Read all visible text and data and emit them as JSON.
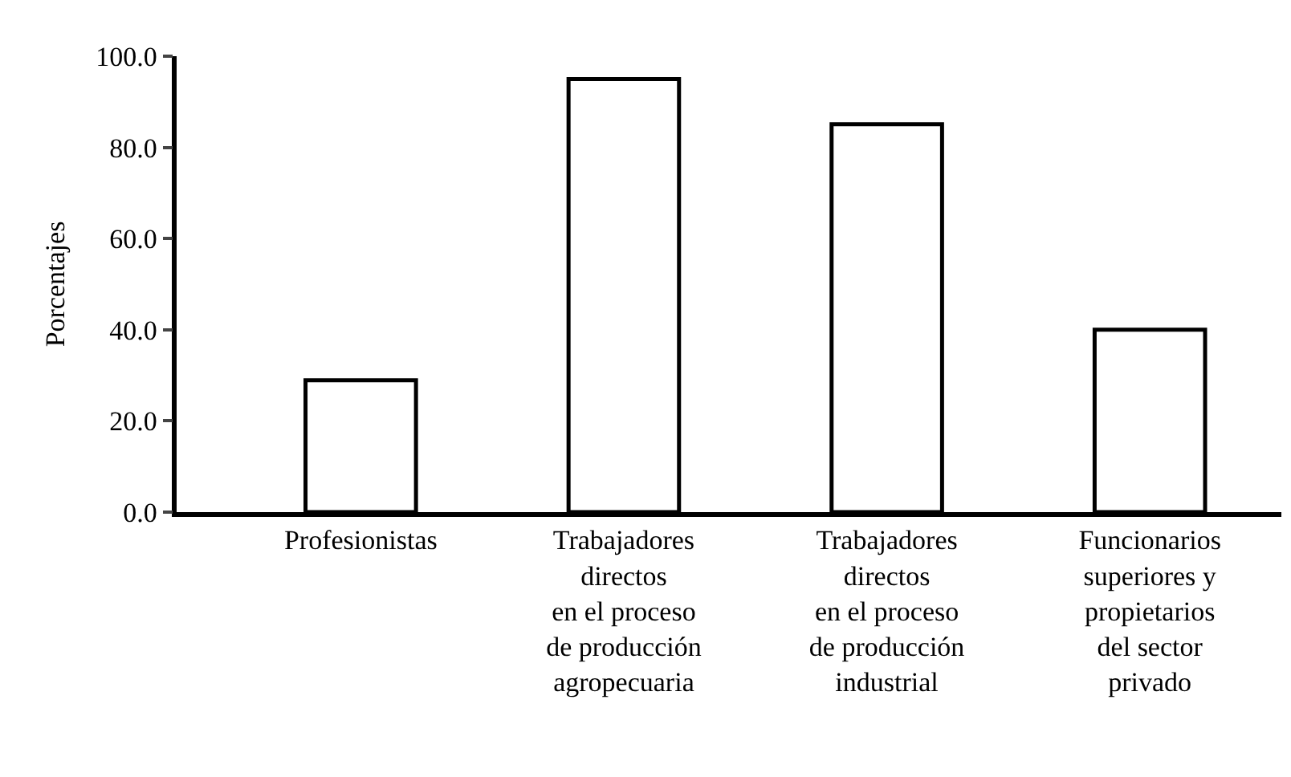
{
  "chart_data": {
    "type": "bar",
    "ylabel": "Porcentajes",
    "categories": [
      "Profesionistas",
      "Trabajadores\ndirectos\nen el proceso\nde producción\nagropecuaria",
      "Trabajadores\ndirectos\nen el proceso\nde producción\nindustrial",
      "Funcionarios\nsuperiores y\npropietarios\ndel sector\nprivado"
    ],
    "values": [
      28.9,
      95.0,
      85.1,
      40.0
    ],
    "color": "#ffffff",
    "ylim": [
      0,
      100
    ],
    "yticks": [
      {
        "value": 0,
        "label": "0.0"
      },
      {
        "value": 20,
        "label": "20.0"
      },
      {
        "value": 40,
        "label": "40.0"
      },
      {
        "value": 60,
        "label": "60.0"
      },
      {
        "value": 80,
        "label": "80.0"
      },
      {
        "value": 100,
        "label": "100.0"
      }
    ]
  }
}
